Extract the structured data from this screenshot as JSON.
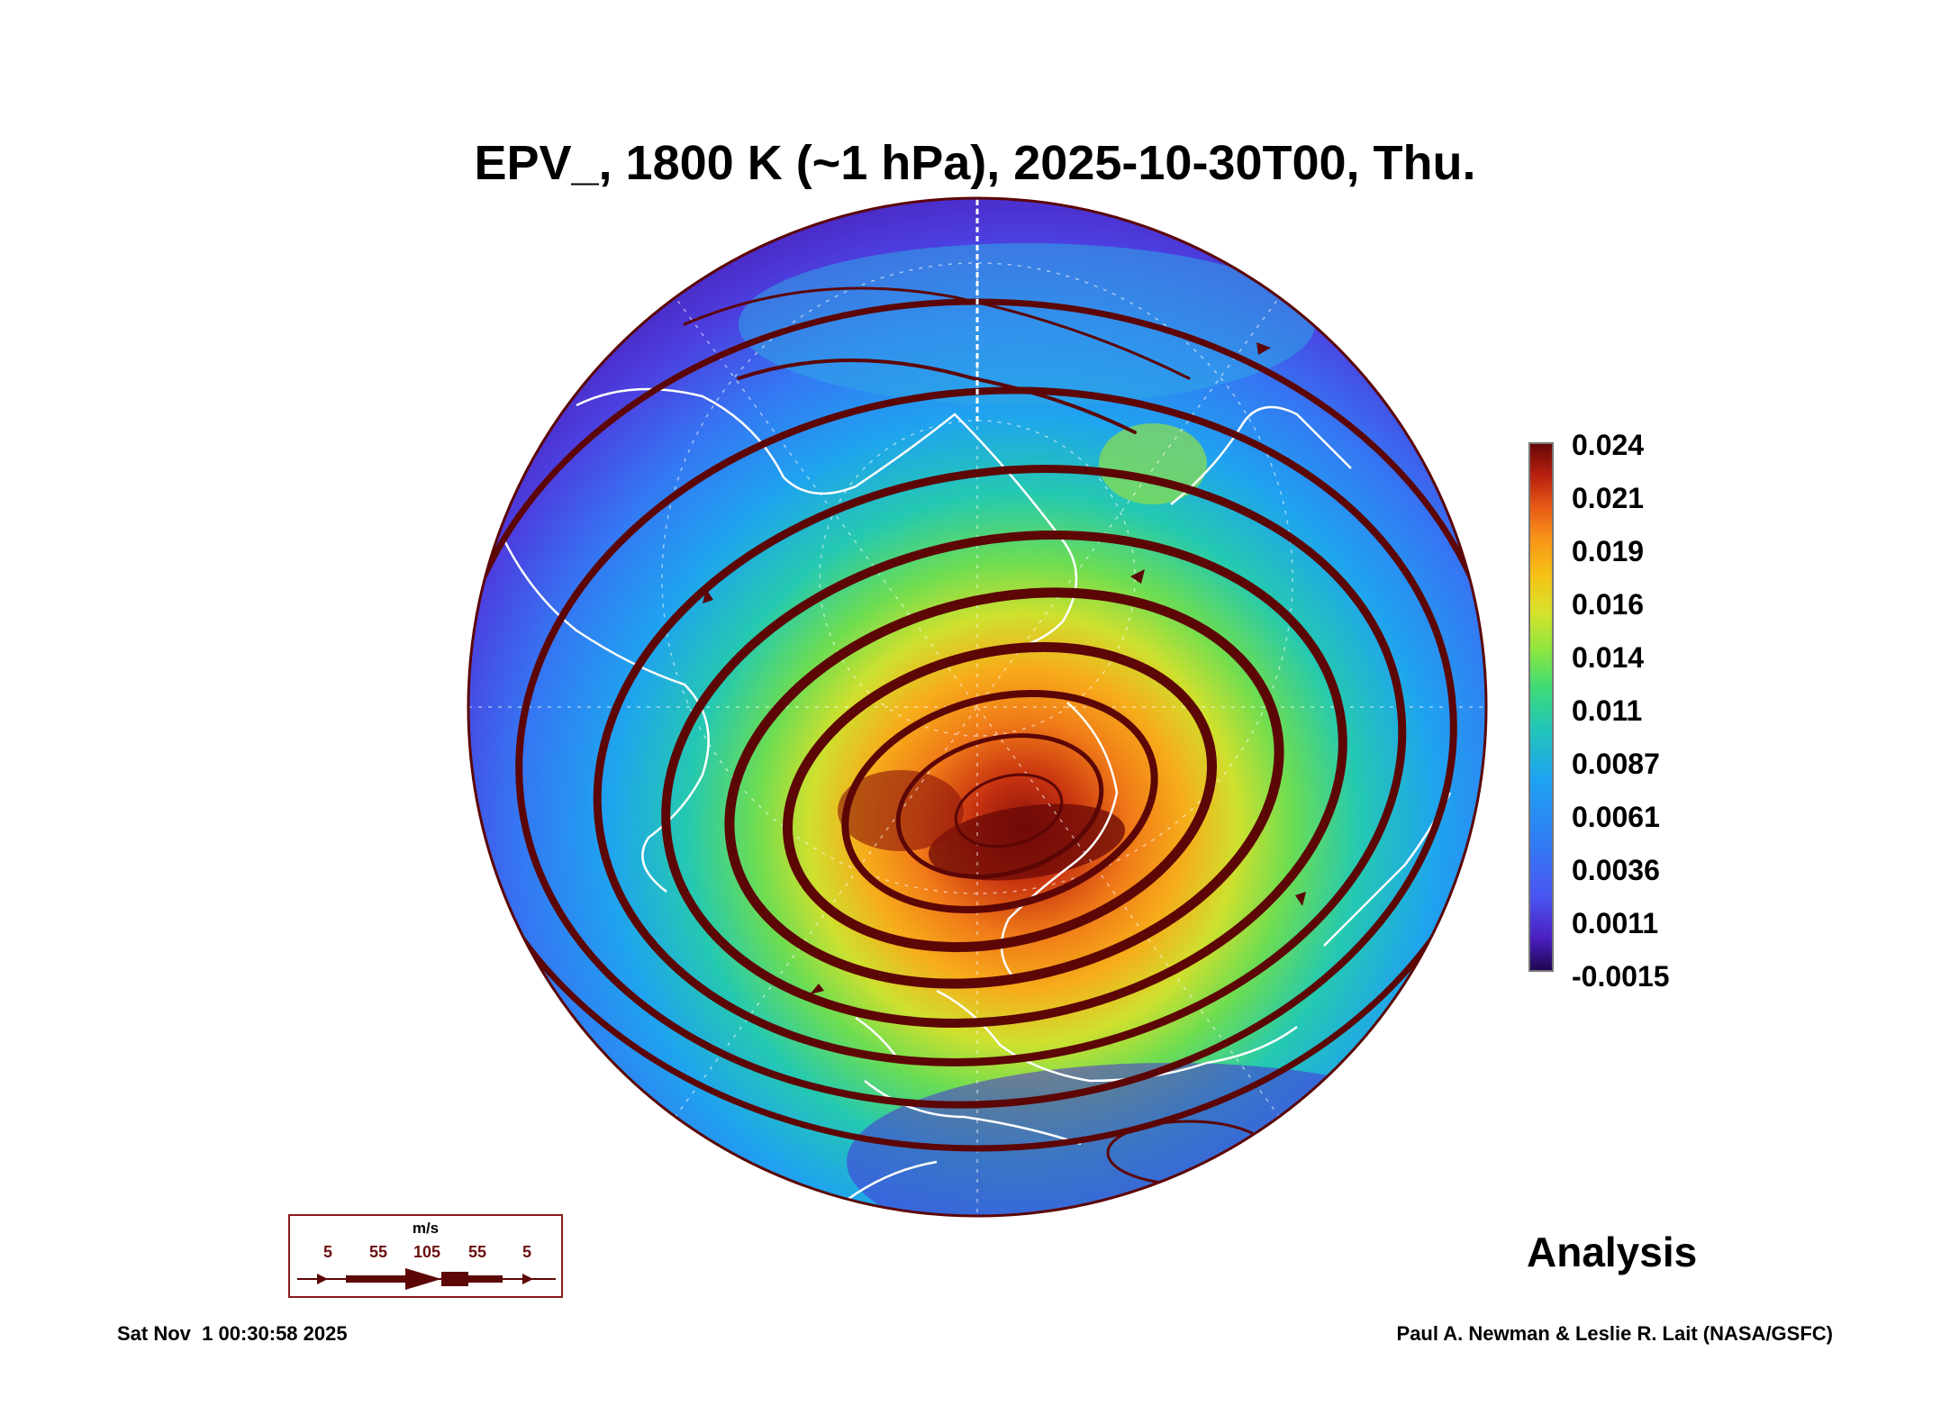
{
  "title": "EPV_, 1800 K (~1 hPa), 2025-10-30T00, Thu.",
  "colorbar": {
    "ticks": [
      "0.024",
      "0.021",
      "0.019",
      "0.016",
      "0.014",
      "0.011",
      "0.0087",
      "0.0061",
      "0.0036",
      "0.0011",
      "-0.0015"
    ],
    "min": -0.0015,
    "max": 0.024
  },
  "label": "Analysis",
  "timestamp": "Sat Nov  1 00:30:58 2025",
  "credit": "Paul A. Newman & Leslie R. Lait (NASA/GSFC)",
  "wind_legend": {
    "unit": "m/s",
    "values": [
      "5",
      "55",
      "105",
      "55",
      "5"
    ]
  },
  "colors": {
    "streamline": "#5c0606",
    "coastline": "#ffffff",
    "low": "#4a2fd0",
    "high": "#b01a10"
  }
}
